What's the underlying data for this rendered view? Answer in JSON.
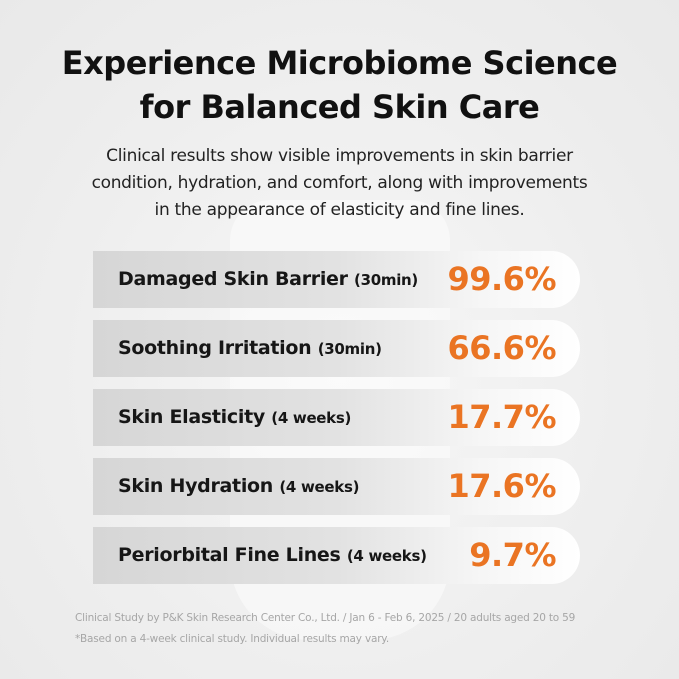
{
  "header": {
    "title_lines": [
      "Experience Microbiome Science",
      "for Balanced Skin Care"
    ],
    "subtitle_lines": [
      "Clinical results show visible improvements in skin barrier",
      "condition, hydration, and comfort, along with improvements",
      "in the appearance of elasticity and fine lines."
    ]
  },
  "results": [
    {
      "label": "Damaged Skin Barrier",
      "qualifier": "(30min)",
      "value": "99.6%"
    },
    {
      "label": "Soothing Irritation",
      "qualifier": "(30min)",
      "value": "66.6%"
    },
    {
      "label": "Skin Elasticity",
      "qualifier": "(4 weeks)",
      "value": "17.7%"
    },
    {
      "label": "Skin Hydration",
      "qualifier": "(4 weeks)",
      "value": "17.6%"
    },
    {
      "label": "Periorbital Fine Lines",
      "qualifier": "(4 weeks)",
      "value": "9.7%"
    }
  ],
  "footnotes": [
    "Clinical Study by P&K Skin Research Center Co., Ltd. / Jan 6 - Feb 6, 2025 / 20 adults aged 20 to 59",
    "*Based on a 4-week clinical study. Individual results may vary."
  ]
}
